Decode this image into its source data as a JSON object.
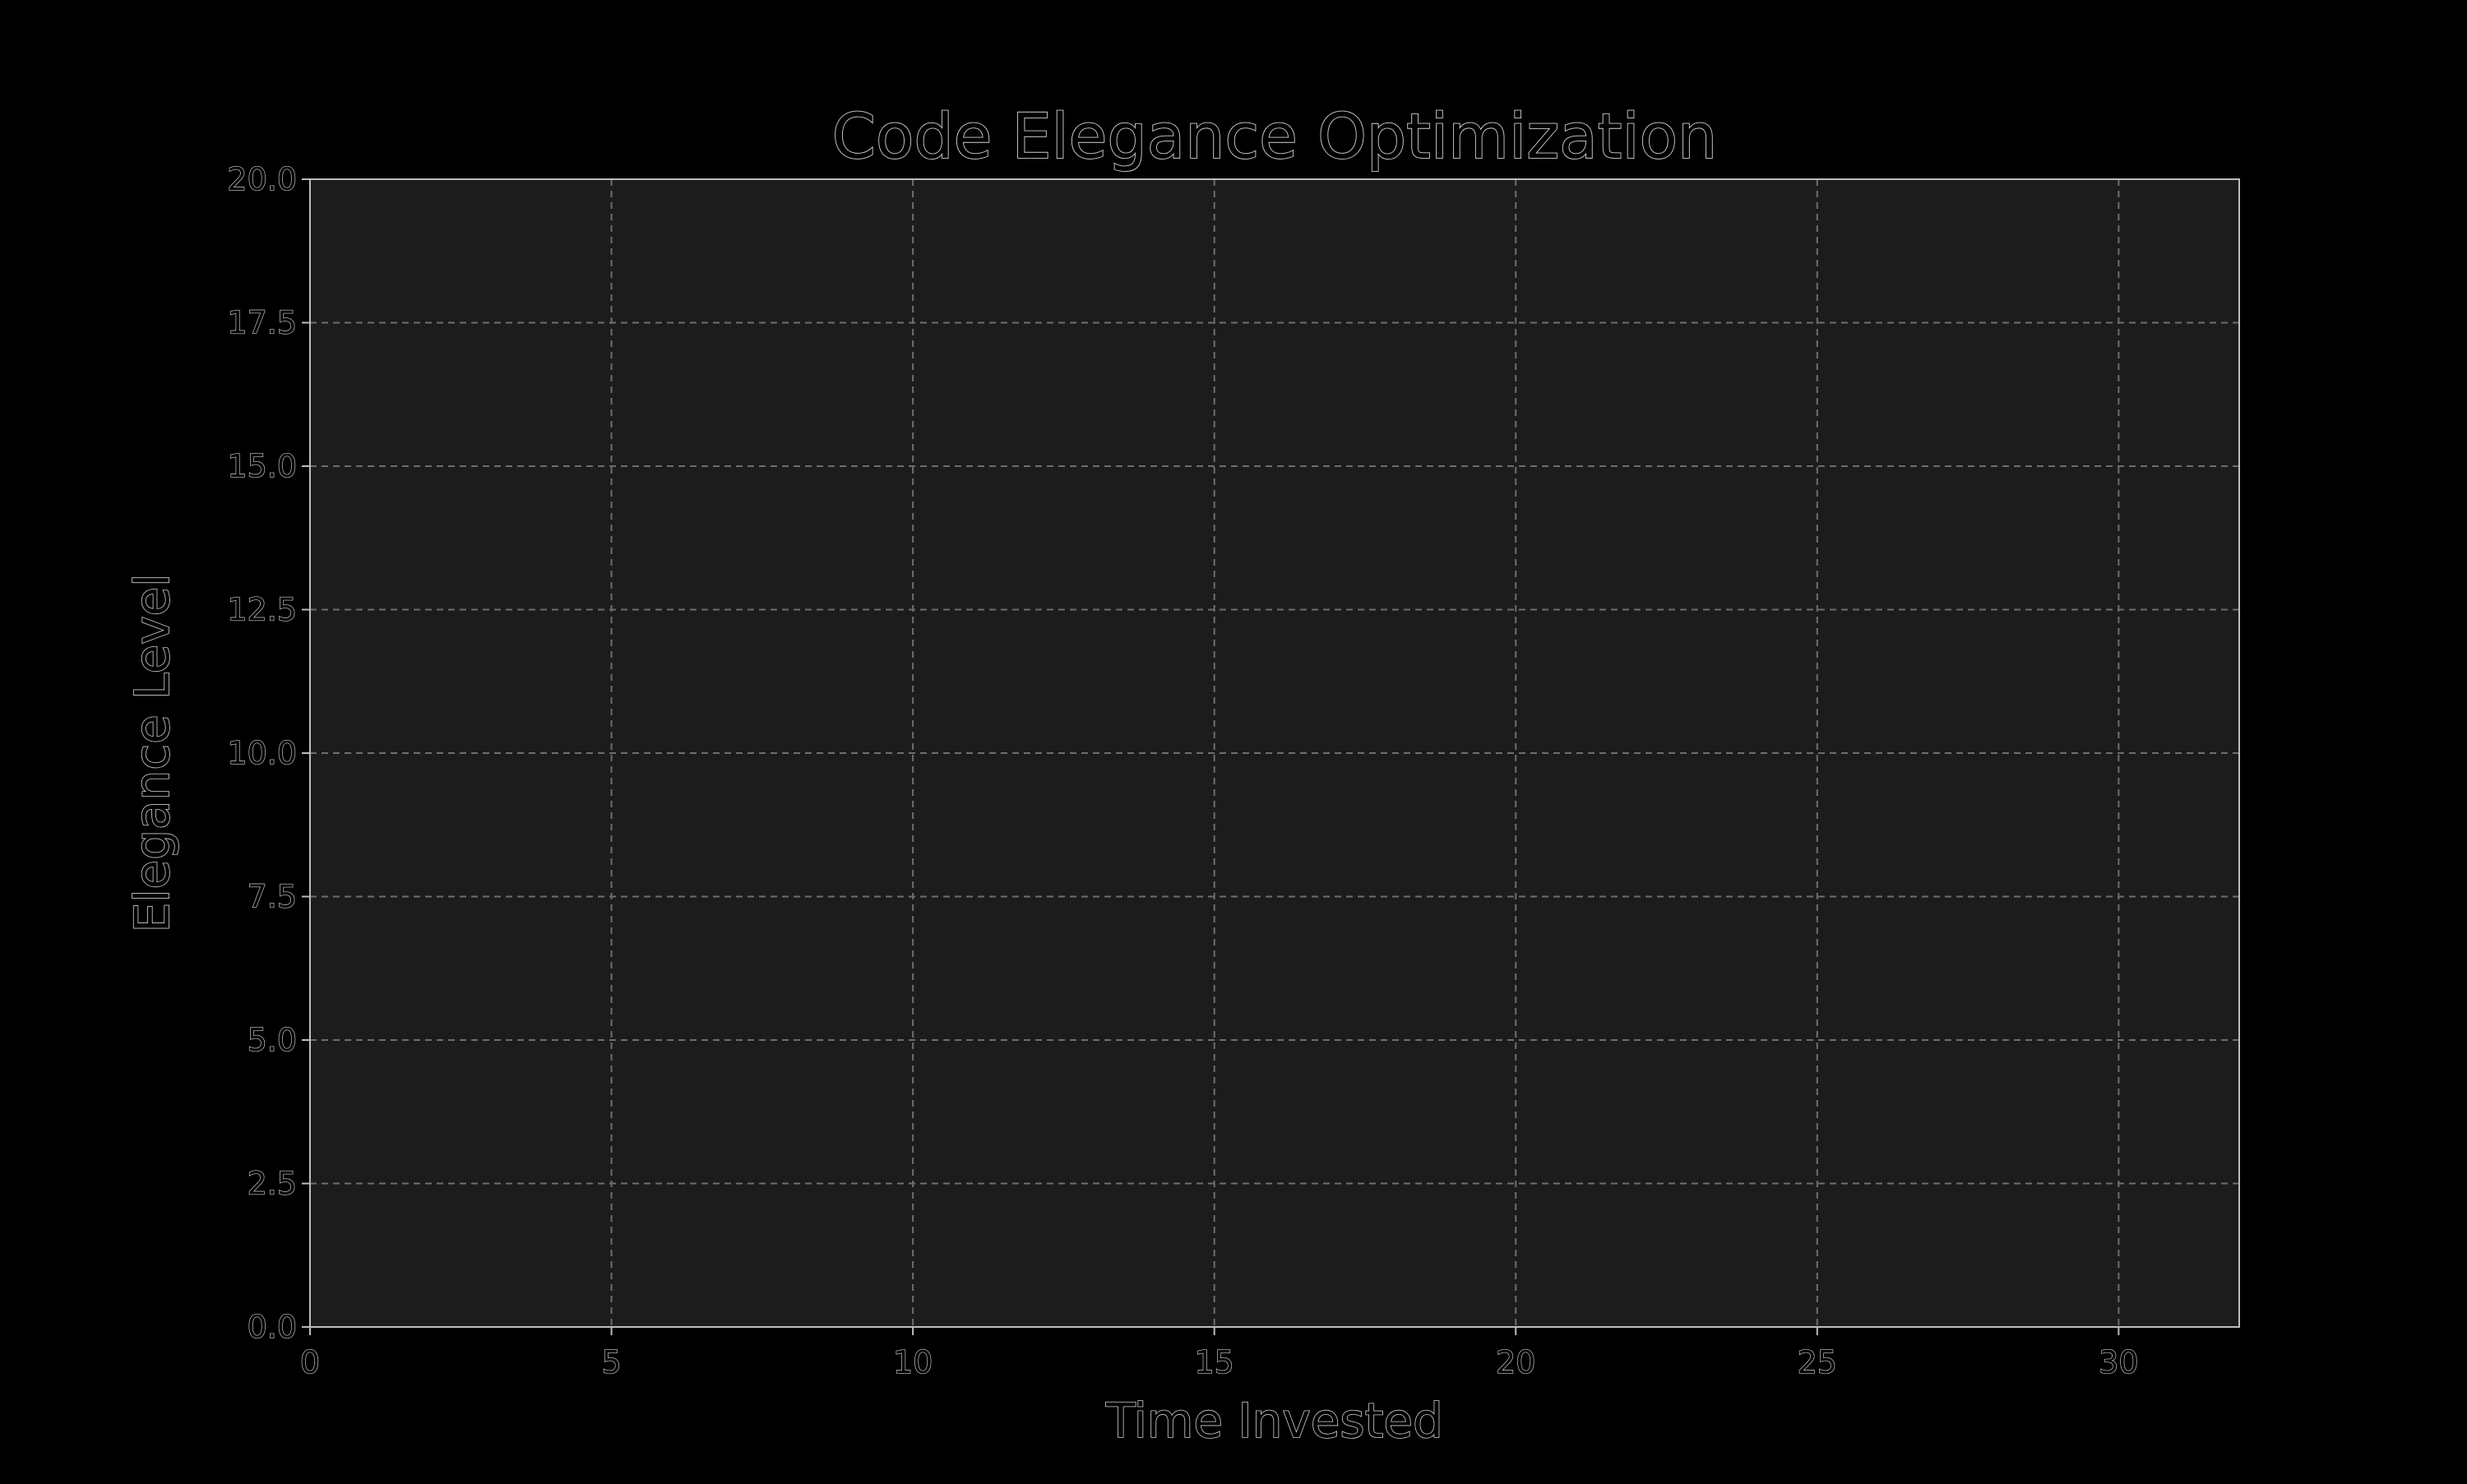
{
  "chart_data": {
    "type": "line",
    "title": "Code Elegance Optimization",
    "xlabel": "Time Invested",
    "ylabel": "Elegance Level",
    "xlim": [
      0,
      32
    ],
    "ylim": [
      0,
      20
    ],
    "x_ticks": [
      "0",
      "5",
      "10",
      "15",
      "20",
      "25",
      "30"
    ],
    "x_tick_values": [
      0,
      5,
      10,
      15,
      20,
      25,
      30
    ],
    "y_ticks": [
      "0.0",
      "2.5",
      "5.0",
      "7.5",
      "10.0",
      "12.5",
      "15.0",
      "17.5",
      "20.0"
    ],
    "y_tick_values": [
      0,
      2.5,
      5,
      7.5,
      10,
      12.5,
      15,
      17.5,
      20
    ],
    "grid": true,
    "grid_style": "dashed",
    "series": [],
    "colors": {
      "figure_background": "#000000",
      "plot_background": "#1c1c1c",
      "grid": "#6e6e6e",
      "axis": "#bdbdbd",
      "text_outline": "#cfcfcf"
    }
  }
}
